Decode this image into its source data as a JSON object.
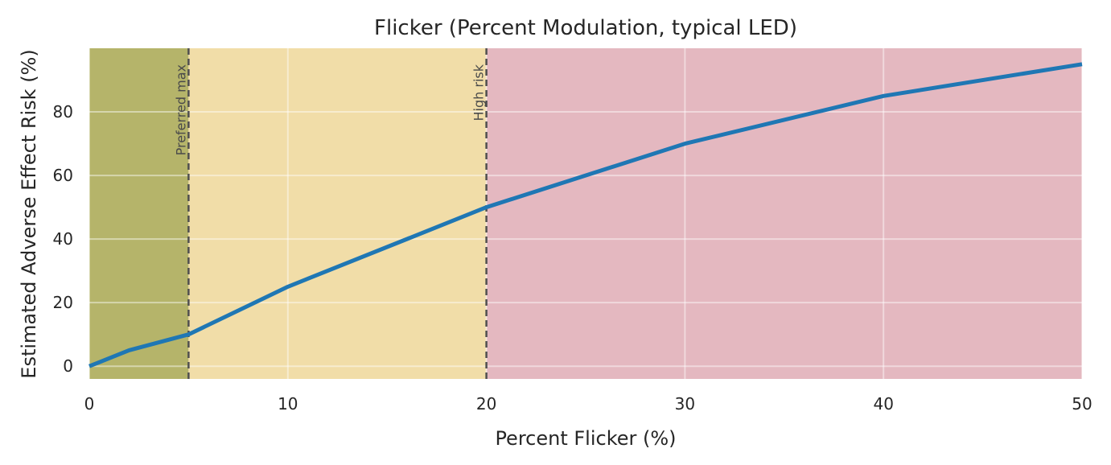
{
  "chart_data": {
    "type": "line",
    "title": "Flicker (Percent Modulation, typical LED)",
    "xlabel": "Percent Flicker (%)",
    "ylabel": "Estimated Adverse Effect Risk (%)",
    "xlim": [
      0,
      50
    ],
    "ylim": [
      -4,
      100
    ],
    "xticks": [
      0,
      10,
      20,
      30,
      40,
      50
    ],
    "yticks": [
      0,
      20,
      40,
      60,
      80
    ],
    "grid": true,
    "series": [
      {
        "color": "#1f77b4",
        "x": [
          0,
          2,
          5,
          10,
          20,
          30,
          40,
          50
        ],
        "y": [
          0,
          5,
          10,
          25,
          50,
          70,
          85,
          95
        ]
      }
    ],
    "regions": [
      {
        "x0": 0,
        "x1": 5,
        "color": "#b5b46a"
      },
      {
        "x0": 5,
        "x1": 20,
        "color": "#f1dda8"
      },
      {
        "x0": 20,
        "x1": 50,
        "color": "#e4b8c0"
      }
    ],
    "reference_lines": [
      {
        "x": 5,
        "label": "Preferred max"
      },
      {
        "x": 20,
        "label": "High risk"
      }
    ]
  }
}
